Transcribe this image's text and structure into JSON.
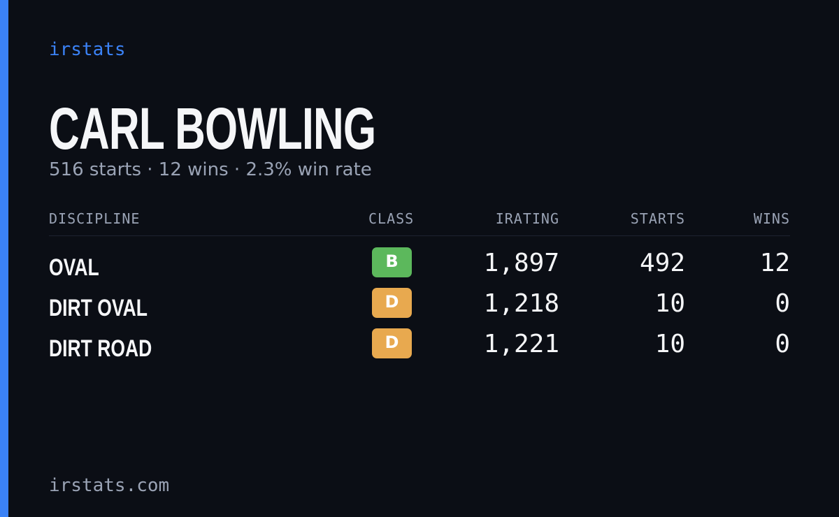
{
  "brand": "irstats",
  "header": {
    "title": "CARL BOWLING",
    "subtitle": "516 starts · 12 wins · 2.3% win rate"
  },
  "table": {
    "columns": [
      "DISCIPLINE",
      "CLASS",
      "IRATING",
      "STARTS",
      "WINS"
    ],
    "rows": [
      {
        "discipline": "OVAL",
        "class": "B",
        "class_color": "#5cb85c",
        "irating": "1,897",
        "starts": "492",
        "wins": "12"
      },
      {
        "discipline": "DIRT OVAL",
        "class": "D",
        "class_color": "#e8a94f",
        "irating": "1,218",
        "starts": "10",
        "wins": "0"
      },
      {
        "discipline": "DIRT ROAD",
        "class": "D",
        "class_color": "#e8a94f",
        "irating": "1,221",
        "starts": "10",
        "wins": "0"
      }
    ]
  },
  "footer": "irstats.com"
}
